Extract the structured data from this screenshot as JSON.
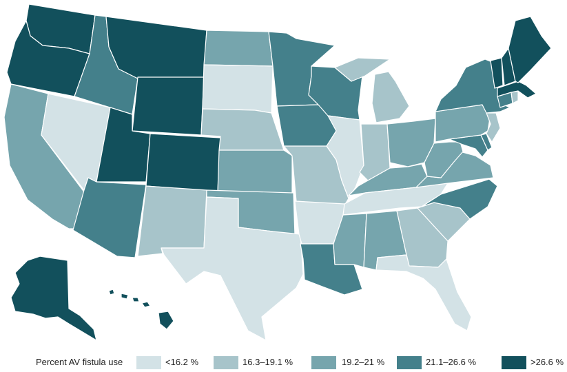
{
  "legend": {
    "title": "Percent AV fistula use",
    "bins": [
      {
        "label": "<16.2 %",
        "color": "#d3e2e6"
      },
      {
        "label": "16.3–19.1 %",
        "color": "#a7c4ca"
      },
      {
        "label": "19.2–21 %",
        "color": "#76a5ad"
      },
      {
        "label": "21.1–26.6 %",
        "color": "#44808b"
      },
      {
        "label": ">26.6 %",
        "color": "#12505c"
      }
    ]
  },
  "states": [
    {
      "code": "WA",
      "bin": 4
    },
    {
      "code": "OR",
      "bin": 4
    },
    {
      "code": "CA",
      "bin": 2
    },
    {
      "code": "NV",
      "bin": 0
    },
    {
      "code": "ID",
      "bin": 3
    },
    {
      "code": "MT",
      "bin": 4
    },
    {
      "code": "WY",
      "bin": 4
    },
    {
      "code": "UT",
      "bin": 4
    },
    {
      "code": "CO",
      "bin": 4
    },
    {
      "code": "AZ",
      "bin": 3
    },
    {
      "code": "NM",
      "bin": 1
    },
    {
      "code": "ND",
      "bin": 2
    },
    {
      "code": "SD",
      "bin": 0
    },
    {
      "code": "NE",
      "bin": 1
    },
    {
      "code": "KS",
      "bin": 2
    },
    {
      "code": "OK",
      "bin": 2
    },
    {
      "code": "TX",
      "bin": 0
    },
    {
      "code": "MN",
      "bin": 3
    },
    {
      "code": "IA",
      "bin": 3
    },
    {
      "code": "MO",
      "bin": 1
    },
    {
      "code": "AR",
      "bin": 0
    },
    {
      "code": "LA",
      "bin": 3
    },
    {
      "code": "WI",
      "bin": 3
    },
    {
      "code": "IL",
      "bin": 0
    },
    {
      "code": "MI",
      "bin": 1
    },
    {
      "code": "IN",
      "bin": 1
    },
    {
      "code": "OH",
      "bin": 2
    },
    {
      "code": "KY",
      "bin": 2
    },
    {
      "code": "TN",
      "bin": 0
    },
    {
      "code": "MS",
      "bin": 2
    },
    {
      "code": "AL",
      "bin": 2
    },
    {
      "code": "GA",
      "bin": 1
    },
    {
      "code": "FL",
      "bin": 0
    },
    {
      "code": "SC",
      "bin": 1
    },
    {
      "code": "NC",
      "bin": 3
    },
    {
      "code": "VA",
      "bin": 2
    },
    {
      "code": "WV",
      "bin": 2
    },
    {
      "code": "PA",
      "bin": 2
    },
    {
      "code": "NY",
      "bin": 3
    },
    {
      "code": "NJ",
      "bin": 1
    },
    {
      "code": "DE",
      "bin": 3
    },
    {
      "code": "MD",
      "bin": 3
    },
    {
      "code": "CT",
      "bin": 3
    },
    {
      "code": "RI",
      "bin": 1
    },
    {
      "code": "MA",
      "bin": 4
    },
    {
      "code": "VT",
      "bin": 4
    },
    {
      "code": "NH",
      "bin": 4
    },
    {
      "code": "ME",
      "bin": 4
    },
    {
      "code": "AK",
      "bin": 4
    },
    {
      "code": "HI",
      "bin": 4
    }
  ]
}
